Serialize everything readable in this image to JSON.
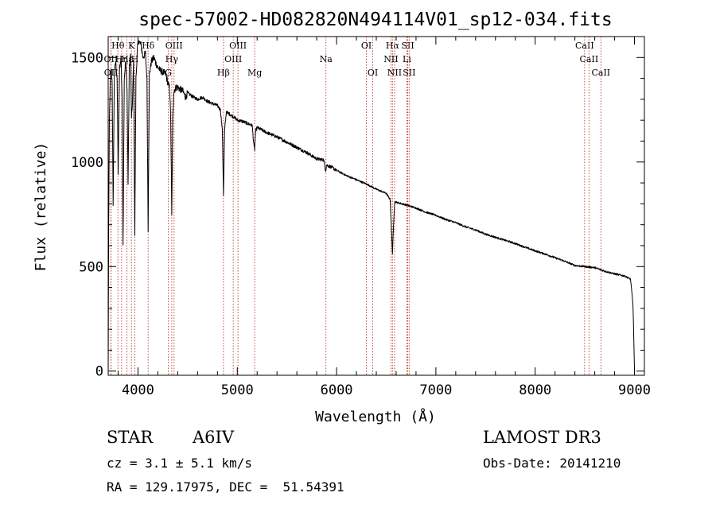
{
  "chart_data": {
    "type": "line",
    "title": "spec-57002-HD082820N494114V01_sp12-034.fits",
    "xlabel": "Wavelength (Å)",
    "ylabel": "Flux (relative)",
    "xlim": [
      3700,
      9100
    ],
    "ylim": [
      -20,
      1600
    ],
    "xticks": [
      4000,
      5000,
      6000,
      7000,
      8000,
      9000
    ],
    "yticks": [
      0,
      500,
      1000,
      1500
    ],
    "series": [
      {
        "name": "flux",
        "anchors": [
          [
            3700,
            0
          ],
          [
            3705,
            700
          ],
          [
            3712,
            1200
          ],
          [
            3720,
            1380
          ],
          [
            3730,
            1450
          ],
          [
            3740,
            1380
          ],
          [
            3750,
            780
          ],
          [
            3762,
            1420
          ],
          [
            3775,
            1480
          ],
          [
            3790,
            1400
          ],
          [
            3800,
            950
          ],
          [
            3815,
            1450
          ],
          [
            3830,
            1500
          ],
          [
            3840,
            1300
          ],
          [
            3850,
            620
          ],
          [
            3862,
            1400
          ],
          [
            3875,
            1480
          ],
          [
            3890,
            1350
          ],
          [
            3900,
            900
          ],
          [
            3912,
            1450
          ],
          [
            3925,
            1520
          ],
          [
            3935,
            1200
          ],
          [
            3945,
            1300
          ],
          [
            3955,
            1480
          ],
          [
            3968,
            650
          ],
          [
            3980,
            1400
          ],
          [
            3995,
            1550
          ],
          [
            4010,
            1580
          ],
          [
            4030,
            1560
          ],
          [
            4050,
            1500
          ],
          [
            4075,
            1520
          ],
          [
            4090,
            1400
          ],
          [
            4102,
            680
          ],
          [
            4115,
            1420
          ],
          [
            4135,
            1480
          ],
          [
            4160,
            1500
          ],
          [
            4190,
            1460
          ],
          [
            4220,
            1440
          ],
          [
            4250,
            1430
          ],
          [
            4280,
            1420
          ],
          [
            4300,
            1380
          ],
          [
            4320,
            1350
          ],
          [
            4330,
            1200
          ],
          [
            4340,
            740
          ],
          [
            4350,
            1200
          ],
          [
            4360,
            1340
          ],
          [
            4390,
            1360
          ],
          [
            4420,
            1350
          ],
          [
            4450,
            1340
          ],
          [
            4480,
            1310
          ],
          [
            4500,
            1330
          ],
          [
            4530,
            1320
          ],
          [
            4560,
            1310
          ],
          [
            4600,
            1300
          ],
          [
            4650,
            1310
          ],
          [
            4700,
            1290
          ],
          [
            4750,
            1280
          ],
          [
            4800,
            1270
          ],
          [
            4830,
            1250
          ],
          [
            4850,
            1150
          ],
          [
            4861,
            840
          ],
          [
            4872,
            1150
          ],
          [
            4890,
            1240
          ],
          [
            4920,
            1230
          ],
          [
            4950,
            1220
          ],
          [
            4980,
            1210
          ],
          [
            5000,
            1200
          ],
          [
            5050,
            1195
          ],
          [
            5100,
            1185
          ],
          [
            5150,
            1175
          ],
          [
            5167,
            1080
          ],
          [
            5175,
            1060
          ],
          [
            5185,
            1150
          ],
          [
            5200,
            1165
          ],
          [
            5300,
            1140
          ],
          [
            5400,
            1120
          ],
          [
            5500,
            1095
          ],
          [
            5600,
            1070
          ],
          [
            5700,
            1045
          ],
          [
            5800,
            1015
          ],
          [
            5870,
            1010
          ],
          [
            5890,
            960
          ],
          [
            5900,
            985
          ],
          [
            5950,
            975
          ],
          [
            6000,
            960
          ],
          [
            6100,
            935
          ],
          [
            6200,
            915
          ],
          [
            6300,
            895
          ],
          [
            6400,
            870
          ],
          [
            6500,
            850
          ],
          [
            6540,
            820
          ],
          [
            6555,
            650
          ],
          [
            6563,
            560
          ],
          [
            6572,
            680
          ],
          [
            6585,
            810
          ],
          [
            6620,
            805
          ],
          [
            6700,
            795
          ],
          [
            6800,
            780
          ],
          [
            6900,
            760
          ],
          [
            7000,
            745
          ],
          [
            7100,
            725
          ],
          [
            7200,
            710
          ],
          [
            7300,
            690
          ],
          [
            7400,
            675
          ],
          [
            7500,
            655
          ],
          [
            7600,
            640
          ],
          [
            7700,
            625
          ],
          [
            7800,
            610
          ],
          [
            7900,
            592
          ],
          [
            8000,
            575
          ],
          [
            8100,
            560
          ],
          [
            8200,
            542
          ],
          [
            8300,
            525
          ],
          [
            8400,
            505
          ],
          [
            8500,
            500
          ],
          [
            8600,
            495
          ],
          [
            8700,
            478
          ],
          [
            8800,
            465
          ],
          [
            8900,
            455
          ],
          [
            8960,
            440
          ],
          [
            8985,
            320
          ],
          [
            9000,
            10
          ]
        ]
      }
    ],
    "lines": [
      {
        "label": "Hθ",
        "wl": 3798,
        "row": 0
      },
      {
        "label": "K",
        "wl": 3934,
        "row": 0
      },
      {
        "label": "Hδ",
        "wl": 4102,
        "row": 0
      },
      {
        "label": "OIII",
        "wl": 4363,
        "row": 0
      },
      {
        "label": "OIII",
        "wl": 5007,
        "row": 0
      },
      {
        "label": "OI",
        "wl": 6300,
        "row": 0
      },
      {
        "label": "Hα",
        "wl": 6563,
        "row": 0
      },
      {
        "label": "SII",
        "wl": 6717,
        "row": 0
      },
      {
        "label": "CaII",
        "wl": 8498,
        "row": 0
      },
      {
        "label": "OII",
        "wl": 3727,
        "row": 1
      },
      {
        "label": "Hη",
        "wl": 3835,
        "row": 1
      },
      {
        "label": "H",
        "wl": 3969,
        "row": 1
      },
      {
        "label": "Hγ",
        "wl": 4340,
        "row": 1
      },
      {
        "label": "OIII",
        "wl": 4959,
        "row": 1
      },
      {
        "label": "Na",
        "wl": 5893,
        "row": 1
      },
      {
        "label": "NII",
        "wl": 6548,
        "row": 1
      },
      {
        "label": "Li",
        "wl": 6708,
        "row": 1
      },
      {
        "label": "CaII",
        "wl": 8542,
        "row": 1
      },
      {
        "label": "OII",
        "wl": 3729,
        "row": 2
      },
      {
        "label": "Hβ",
        "wl": 4861,
        "row": 2
      },
      {
        "label": "Mg",
        "wl": 5175,
        "row": 2
      },
      {
        "label": "OI",
        "wl": 6364,
        "row": 2
      },
      {
        "label": "NII",
        "wl": 6584,
        "row": 2
      },
      {
        "label": "SII",
        "wl": 6731,
        "row": 2
      },
      {
        "label": "CaII",
        "wl": 8662,
        "row": 2
      },
      {
        "label": "Hε",
        "wl": 3889,
        "row": 1
      },
      {
        "label": "G",
        "wl": 4305,
        "row": 2
      }
    ]
  },
  "info": {
    "object_class": "STAR",
    "subclass": "A6IV",
    "cz": "cz = 3.1 ± 5.1 km/s",
    "coords": "RA = 129.17975, DEC =  51.54391",
    "survey": "LAMOST DR3",
    "obs_date": "Obs-Date: 20141210"
  }
}
